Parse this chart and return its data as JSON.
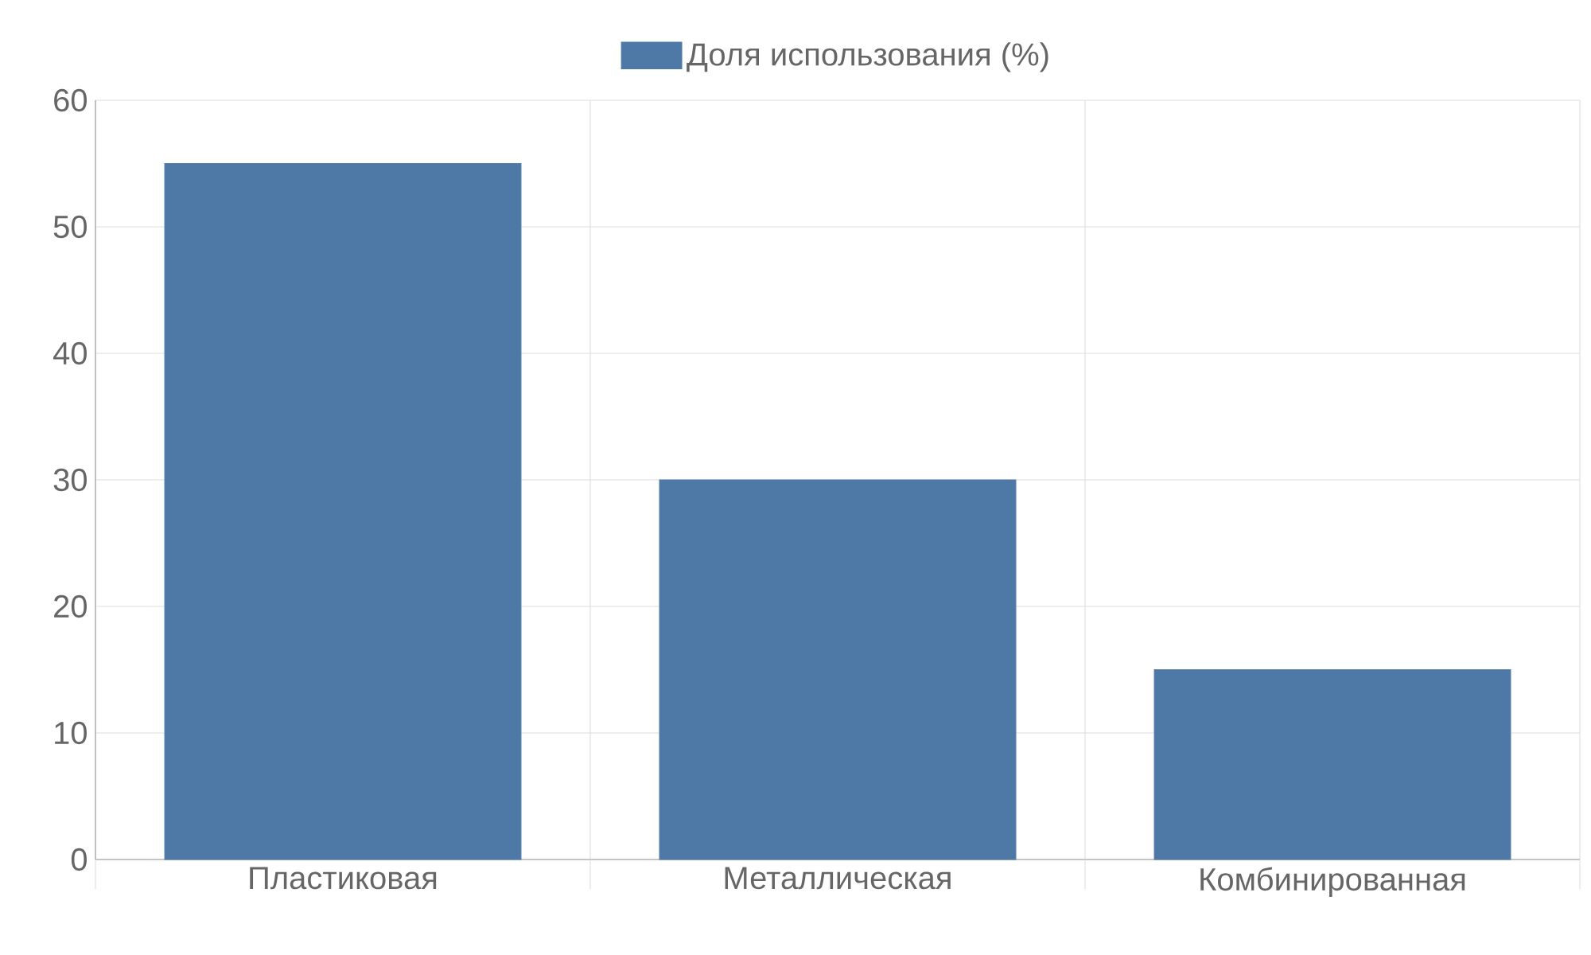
{
  "chart_data": {
    "type": "bar",
    "categories": [
      "Пластиковая",
      "Металлическая",
      "Комбинированная"
    ],
    "series": [
      {
        "name": "Доля использования (%)",
        "color": "#4e79a7",
        "values": [
          55,
          30,
          15
        ]
      }
    ],
    "ylim": [
      0,
      60
    ],
    "yticks": [
      0,
      10,
      20,
      30,
      40,
      50,
      60
    ],
    "grid": true,
    "legend": "top"
  }
}
